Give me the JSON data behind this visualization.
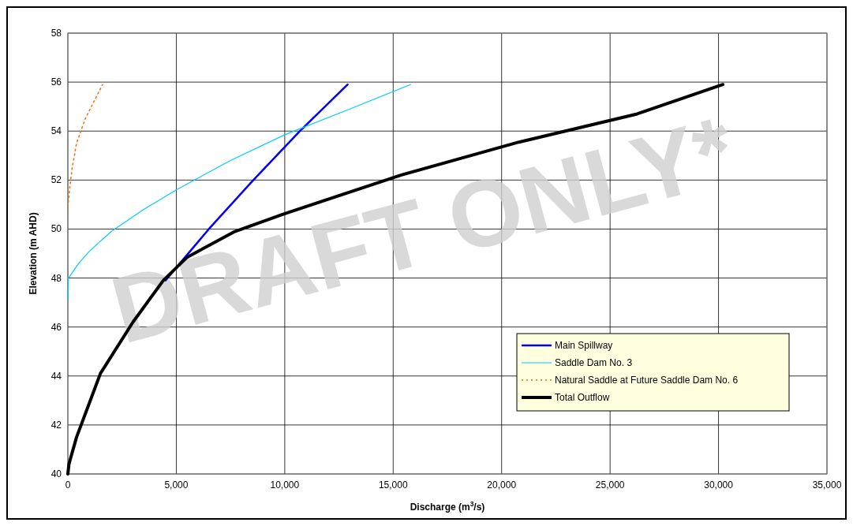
{
  "chart_data": {
    "type": "line",
    "xlabel": "Discharge (m$^{3}$/s)",
    "ylabel": "Elevation (m AHD)",
    "xlim": [
      0,
      35000
    ],
    "xticks": [
      0,
      {
        "value": 5000,
        "label": "5,000"
      },
      {
        "value": 10000,
        "label": "10,000"
      },
      {
        "value": 15000,
        "label": "15,000"
      },
      {
        "value": 20000,
        "label": "20,000"
      },
      {
        "value": 25000,
        "label": "25,000"
      },
      {
        "value": 30000,
        "label": "30,000"
      },
      {
        "value": 35000,
        "label": "35,000"
      }
    ],
    "ylim": [
      40,
      58
    ],
    "yticks": [
      40,
      42,
      44,
      46,
      48,
      50,
      52,
      54,
      56,
      58
    ],
    "grid": true,
    "legend": "bottom right",
    "marker": "none",
    "annotations": [
      "DRAFT ONLY*"
    ],
    "series": [
      {
        "name": "Main Spillway",
        "color": "#0000ff",
        "line_style": "solid",
        "x": [
          4500,
          6500,
          8500,
          10700,
          12900
        ],
        "values": [
          47.9,
          50.0,
          51.95,
          54.0,
          55.9
        ]
      },
      {
        "name": "Saddle Dam No. 3",
        "color": "#00ccff",
        "line_style": "solid",
        "x": [
          0,
          30,
          500,
          1000,
          2000,
          3500,
          5000,
          7500,
          10000,
          13000,
          15800
        ],
        "values": [
          47.1,
          48.0,
          48.6,
          49.1,
          49.9,
          50.8,
          51.6,
          52.8,
          53.85,
          54.9,
          55.9
        ]
      },
      {
        "name": "Natural Saddle at Future Saddle Dam No. 6",
        "color": "#ff6600",
        "line_style": "dotted",
        "x": [
          0,
          100,
          200,
          400,
          800,
          1200,
          1600
        ],
        "values": [
          50.9,
          51.8,
          52.5,
          53.5,
          54.5,
          55.2,
          55.9
        ]
      },
      {
        "name": "Total Outflow",
        "color": "#000000",
        "line_style": "solid",
        "x": [
          0,
          50,
          400,
          1500,
          3000,
          4400,
          5500,
          7700,
          9900,
          15350,
          20800,
          26250,
          30200
        ],
        "values": [
          40,
          40.4,
          41.5,
          44.1,
          46.2,
          47.9,
          48.85,
          49.9,
          50.6,
          52.2,
          53.55,
          54.7,
          55.9
        ]
      }
    ]
  }
}
